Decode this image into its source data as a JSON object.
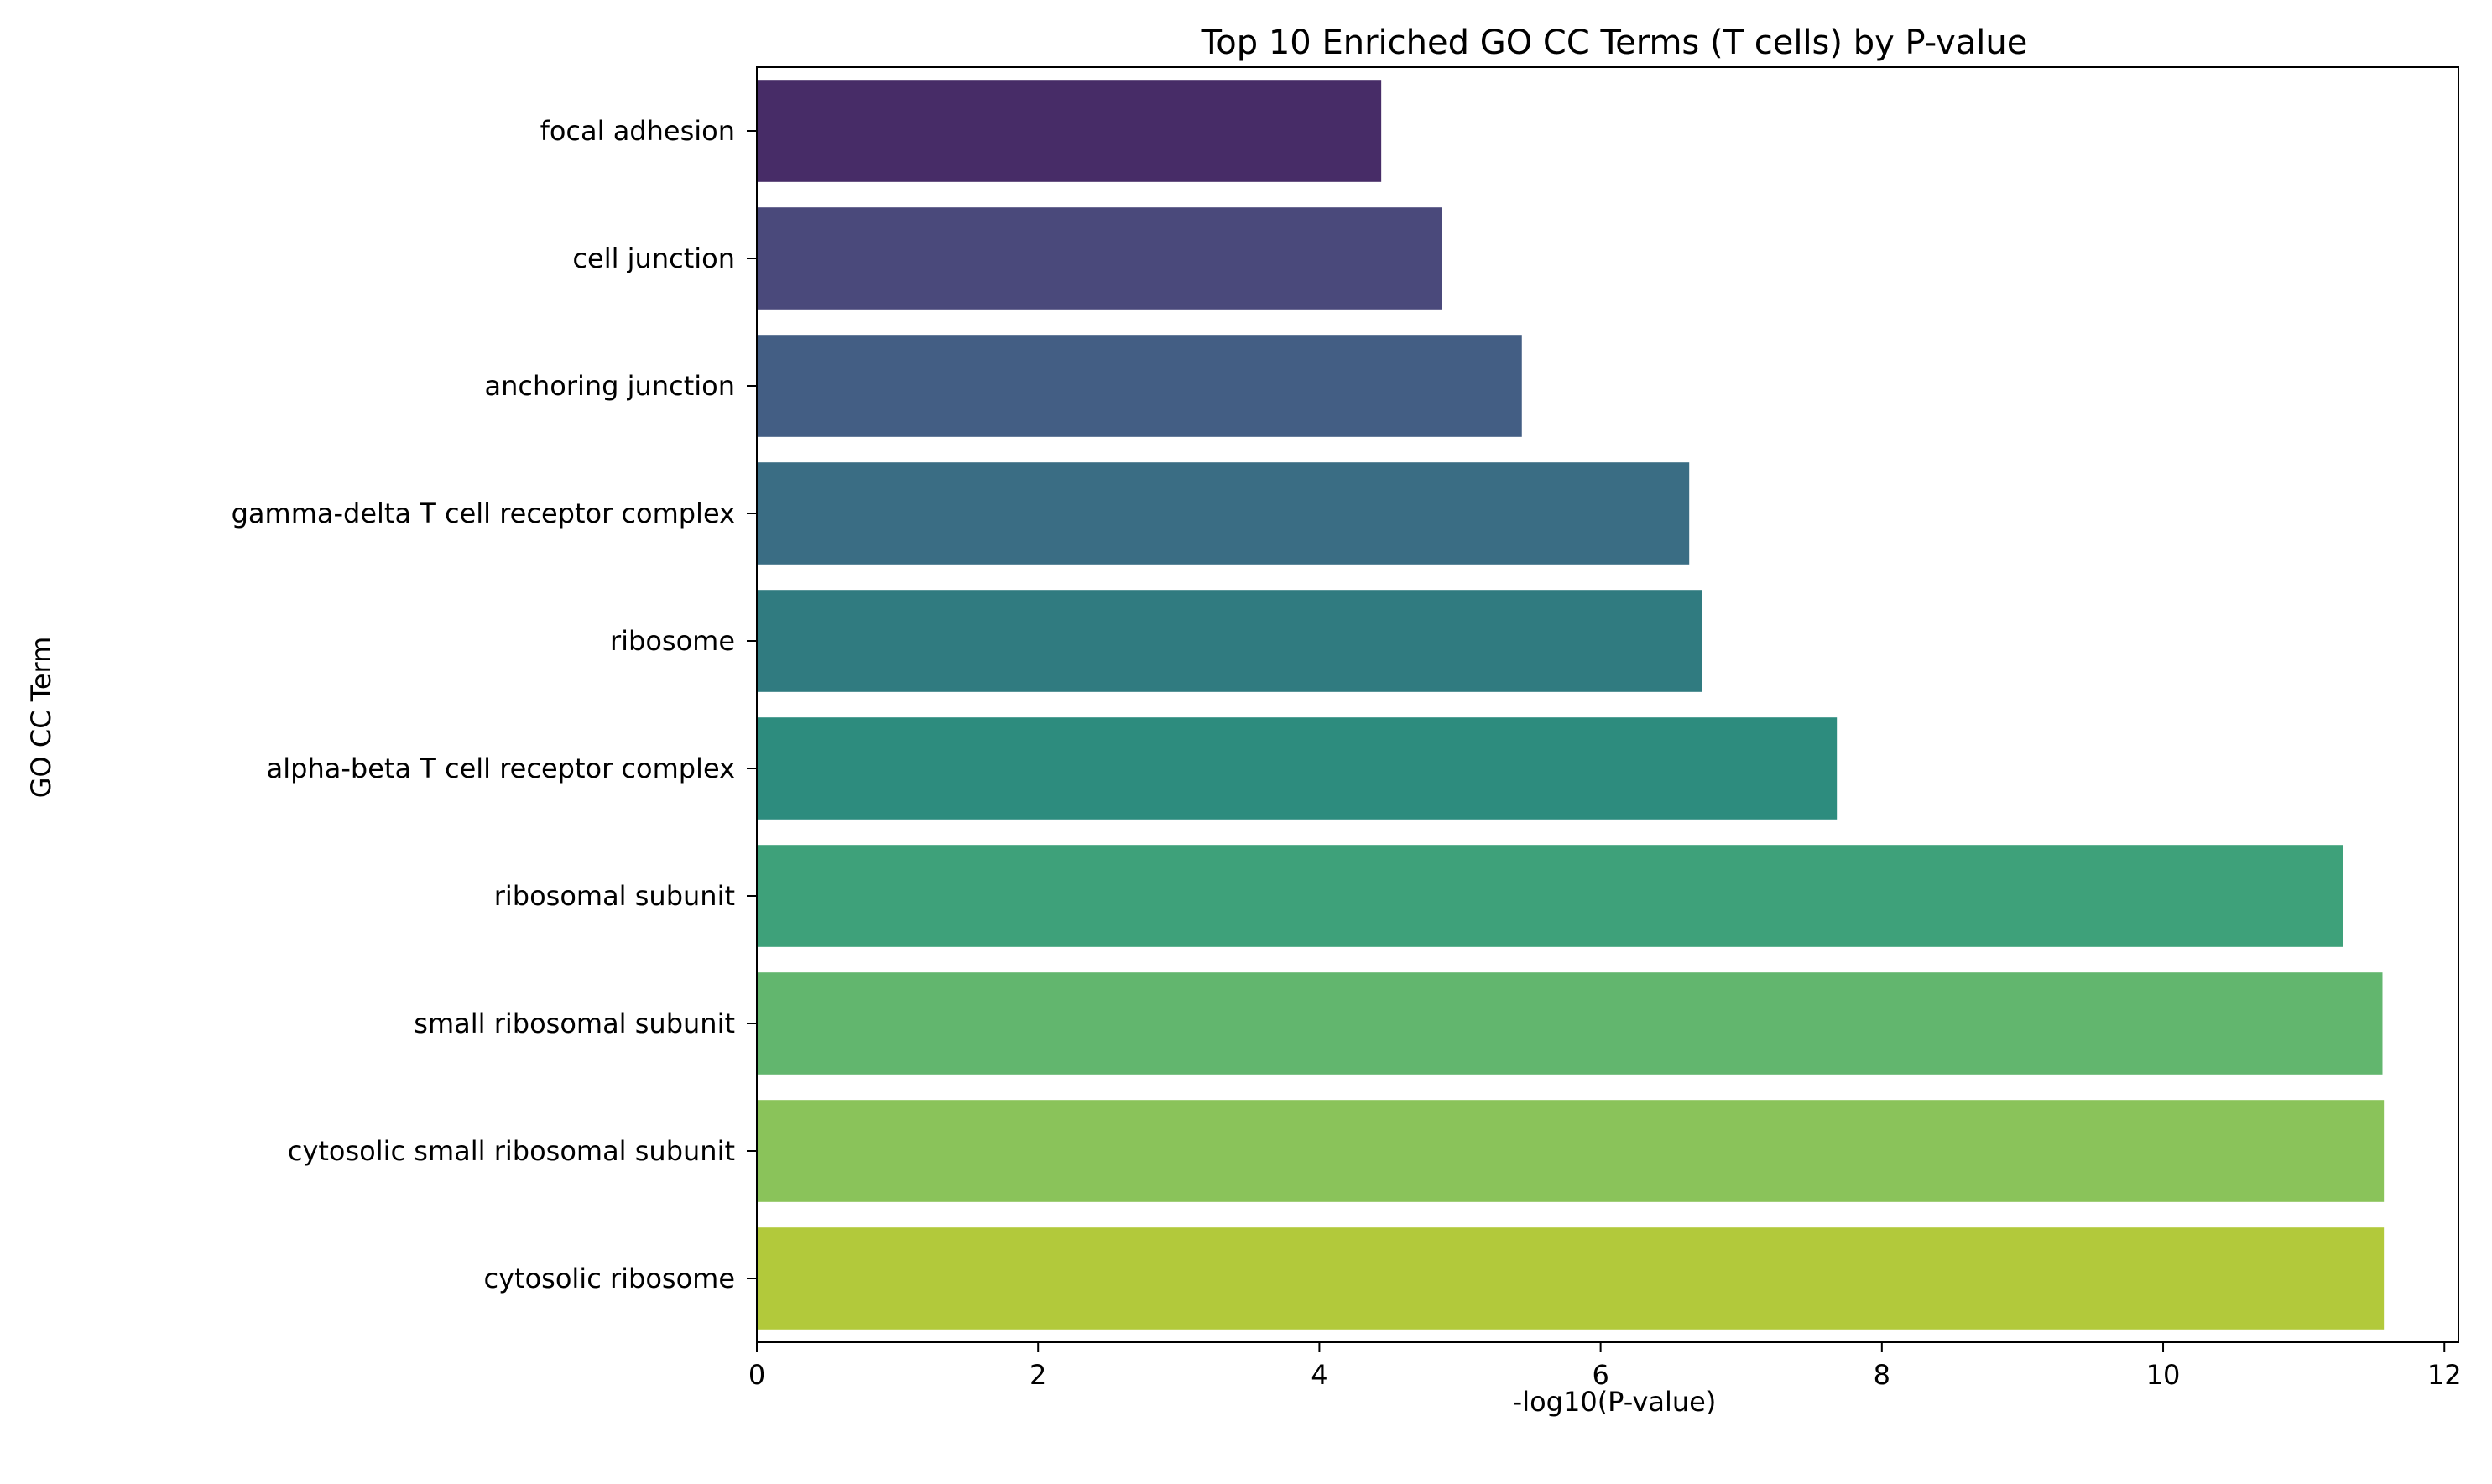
{
  "chart_data": {
    "type": "bar",
    "orientation": "horizontal",
    "title": "Top 10 Enriched GO CC Terms (T cells) by P-value",
    "xlabel": "-log10(P-value)",
    "ylabel": "GO CC Term",
    "xlim": [
      0,
      12.1
    ],
    "xticks": [
      "0",
      "2",
      "4",
      "6",
      "8",
      "10",
      "12"
    ],
    "xtick_values": [
      0,
      2,
      4,
      6,
      8,
      10,
      12
    ],
    "grid": false,
    "legend": "none",
    "categories": [
      "focal adhesion",
      "cell junction",
      "anchoring junction",
      "gamma-delta T cell receptor complex",
      "ribosome",
      "alpha-beta T cell receptor complex",
      "ribosomal subunit",
      "small ribosomal subunit",
      "cytosolic small ribosomal subunit",
      "cytosolic ribosome"
    ],
    "values": [
      4.44,
      4.87,
      5.44,
      6.63,
      6.72,
      7.68,
      11.28,
      11.56,
      11.57,
      11.57
    ],
    "colors": [
      "#472c67",
      "#4a497b",
      "#435e84",
      "#3a6d84",
      "#307b80",
      "#2d8c7e",
      "#3ea17a",
      "#62b66e",
      "#8ac35a",
      "#b2c93b"
    ]
  }
}
